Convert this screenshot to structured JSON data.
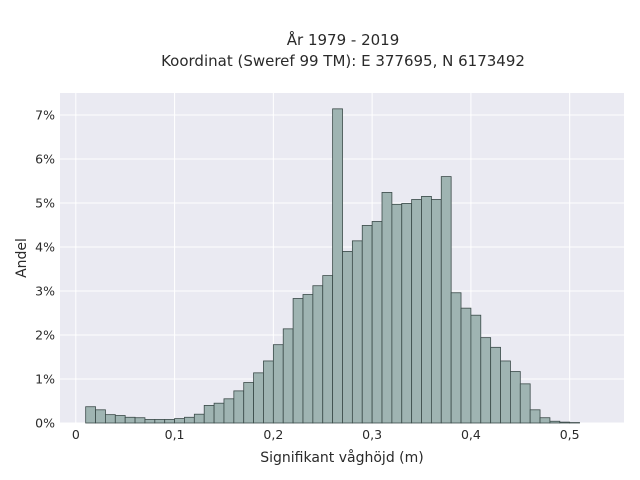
{
  "chart_data": {
    "type": "bar",
    "title_line1": "År 1979 - 2019",
    "title_line2": "Koordinat (Sweref 99 TM): E 377695, N 6173492",
    "xlabel": "Signifikant våghöjd (m)",
    "ylabel": "Andel",
    "grid": true,
    "x_ticks": [
      {
        "value": 0.0,
        "label": "0"
      },
      {
        "value": 0.1,
        "label": "0,1"
      },
      {
        "value": 0.2,
        "label": "0,2"
      },
      {
        "value": 0.3,
        "label": "0,3"
      },
      {
        "value": 0.4,
        "label": "0,4"
      },
      {
        "value": 0.5,
        "label": "0,5"
      }
    ],
    "y_ticks": [
      {
        "value": 0,
        "label": "0%"
      },
      {
        "value": 1,
        "label": "1%"
      },
      {
        "value": 2,
        "label": "2%"
      },
      {
        "value": 3,
        "label": "3%"
      },
      {
        "value": 4,
        "label": "4%"
      },
      {
        "value": 5,
        "label": "5%"
      },
      {
        "value": 6,
        "label": "6%"
      },
      {
        "value": 7,
        "label": "7%"
      }
    ],
    "xlim": [
      -0.016,
      0.555
    ],
    "ylim": [
      0,
      7.5
    ],
    "bin_start": 0.01,
    "bin_width": 0.01,
    "values": [
      0.37,
      0.3,
      0.19,
      0.17,
      0.13,
      0.12,
      0.08,
      0.08,
      0.08,
      0.1,
      0.13,
      0.2,
      0.4,
      0.45,
      0.55,
      0.73,
      0.92,
      1.14,
      1.41,
      1.78,
      2.14,
      2.83,
      2.92,
      3.12,
      3.35,
      7.14,
      3.9,
      4.14,
      4.49,
      4.58,
      5.24,
      4.97,
      4.99,
      5.08,
      5.15,
      5.08,
      5.6,
      2.96,
      2.61,
      2.45,
      1.94,
      1.72,
      1.41,
      1.17,
      0.89,
      0.3,
      0.12,
      0.04,
      0.02,
      0.01
    ],
    "colors": {
      "bar_fill": "#9fb4b2",
      "bar_edge": "#3a4a48",
      "plot_bg": "#eaeaf2",
      "grid": "#ffffff",
      "text": "#2a2a2a"
    }
  }
}
